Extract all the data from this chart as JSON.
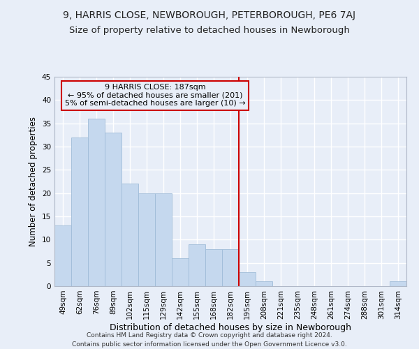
{
  "title": "9, HARRIS CLOSE, NEWBOROUGH, PETERBOROUGH, PE6 7AJ",
  "subtitle": "Size of property relative to detached houses in Newborough",
  "xlabel": "Distribution of detached houses by size in Newborough",
  "ylabel": "Number of detached properties",
  "categories": [
    "49sqm",
    "62sqm",
    "76sqm",
    "89sqm",
    "102sqm",
    "115sqm",
    "129sqm",
    "142sqm",
    "155sqm",
    "168sqm",
    "182sqm",
    "195sqm",
    "208sqm",
    "221sqm",
    "235sqm",
    "248sqm",
    "261sqm",
    "274sqm",
    "288sqm",
    "301sqm",
    "314sqm"
  ],
  "values": [
    13,
    32,
    36,
    33,
    22,
    20,
    20,
    6,
    9,
    8,
    8,
    3,
    1,
    0,
    0,
    0,
    0,
    0,
    0,
    0,
    1
  ],
  "bar_color": "#c5d8ee",
  "bar_edge_color": "#a0bcd8",
  "bg_color": "#e8eef8",
  "grid_color": "#ffffff",
  "property_line_color": "#cc0000",
  "annotation_text": "9 HARRIS CLOSE: 187sqm\n← 95% of detached houses are smaller (201)\n5% of semi-detached houses are larger (10) →",
  "annotation_box_color": "#cc0000",
  "ylim": [
    0,
    45
  ],
  "yticks": [
    0,
    5,
    10,
    15,
    20,
    25,
    30,
    35,
    40,
    45
  ],
  "footer_text": "Contains HM Land Registry data © Crown copyright and database right 2024.\nContains public sector information licensed under the Open Government Licence v3.0.",
  "title_fontsize": 10,
  "subtitle_fontsize": 9.5,
  "xlabel_fontsize": 9,
  "ylabel_fontsize": 8.5,
  "tick_fontsize": 7.5,
  "annotation_fontsize": 8,
  "footer_fontsize": 6.5,
  "line_x_index": 10.5
}
